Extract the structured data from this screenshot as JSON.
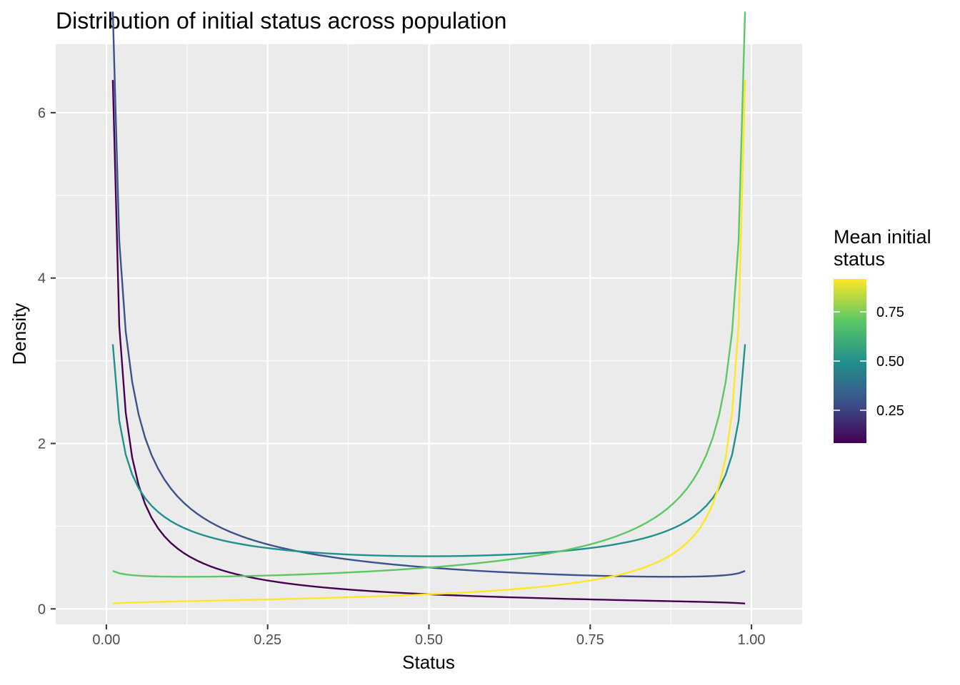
{
  "chart_data": {
    "type": "line",
    "title": "Distribution of initial status across population",
    "xlabel": "Status",
    "ylabel": "Density",
    "xlim": [
      -0.0785,
      1.0785
    ],
    "ylim": [
      -0.187,
      6.827
    ],
    "x_ticks": [
      {
        "value": 0.0,
        "label": "0.00"
      },
      {
        "value": 0.25,
        "label": "0.25"
      },
      {
        "value": 0.5,
        "label": "0.50"
      },
      {
        "value": 0.75,
        "label": "0.75"
      },
      {
        "value": 1.0,
        "label": "1.00"
      }
    ],
    "y_ticks": [
      {
        "value": 0,
        "label": "0"
      },
      {
        "value": 2,
        "label": "2"
      },
      {
        "value": 4,
        "label": "4"
      },
      {
        "value": 6,
        "label": "6"
      }
    ],
    "grid": true,
    "background": "#ebebeb",
    "legend": {
      "title_lines": [
        "Mean initial",
        "status"
      ],
      "placement": "right",
      "type": "colorbar",
      "range": [
        0.083,
        0.917
      ],
      "ticks": [
        {
          "value": 0.25,
          "label": "0.25"
        },
        {
          "value": 0.5,
          "label": "0.50"
        },
        {
          "value": 0.75,
          "label": "0.75"
        }
      ],
      "gradient": [
        "#440154",
        "#3b528b",
        "#21908c",
        "#5dc863",
        "#fde725"
      ]
    },
    "series": [
      {
        "mean": 0.083,
        "color": "#440154",
        "alpha": 0.1,
        "beta": 1.1
      },
      {
        "mean": 0.25,
        "color": "#3b528b",
        "alpha": 0.3,
        "beta": 0.9
      },
      {
        "mean": 0.5,
        "color": "#21908c",
        "alpha": 0.5,
        "beta": 0.5
      },
      {
        "mean": 0.75,
        "color": "#5dc863",
        "alpha": 0.9,
        "beta": 0.3
      },
      {
        "mean": 0.917,
        "color": "#fde725",
        "alpha": 1.1,
        "beta": 0.1
      }
    ],
    "x_range": [
      0.01,
      0.99
    ],
    "points_per_series": 99
  }
}
